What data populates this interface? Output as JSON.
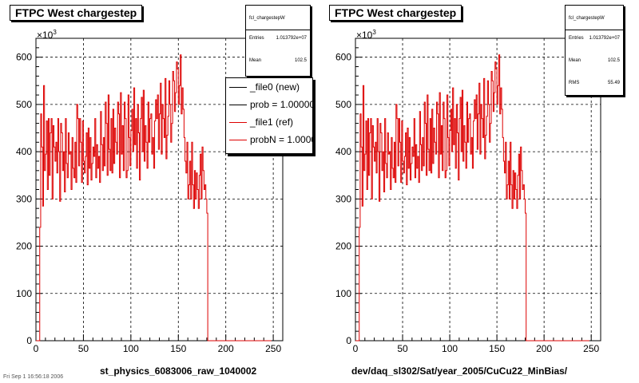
{
  "colors": {
    "new": "#000000",
    "ref": "#dd0000",
    "grid": "#000000"
  },
  "panels": [
    {
      "title": "FTPC West chargestep",
      "x_title": "st_physics_6083006_raw_1040002",
      "exponent": "×10",
      "exponent_power": "3",
      "stats": {
        "name": "fcl_chargestepW",
        "rows": [
          {
            "label": "Entries",
            "value": "1.013792e+07"
          },
          {
            "label": "Mean",
            "value": "102.5"
          }
        ]
      },
      "legend": [
        {
          "label": "_file0 (new)",
          "color": "#000000"
        },
        {
          "label": "prob = 1.000000",
          "color": "#000000"
        },
        {
          "label": "_file1 (ref)",
          "color": "#dd0000"
        },
        {
          "label": "probN = 1.000000",
          "color": "#dd0000"
        }
      ]
    },
    {
      "title": "FTPC West chargestep",
      "x_title": "dev/daq_sl302/Sat/year_2005/CuCu22_MinBias/",
      "exponent": "×10",
      "exponent_power": "3",
      "stats": {
        "name": "fcl_chargestepW",
        "rows": [
          {
            "label": "Entries",
            "value": "1.013792e+07"
          },
          {
            "label": "Mean",
            "value": "102.5"
          },
          {
            "label": "RMS",
            "value": "55.49"
          }
        ]
      }
    }
  ],
  "chart_data": {
    "type": "line",
    "xlim": [
      0,
      260
    ],
    "ylim": [
      0,
      640
    ],
    "x_ticks": [
      0,
      50,
      100,
      150,
      200,
      250
    ],
    "y_ticks": [
      0,
      100,
      200,
      300,
      400,
      500,
      600
    ],
    "grid": true,
    "bin_width": 1,
    "x_start": 0,
    "series_note": "histogram y values in units of 10^3 counts per bin, bins 0..259",
    "values": [
      0,
      0,
      0,
      0,
      240,
      480,
      410,
      285,
      540,
      360,
      395,
      465,
      320,
      470,
      350,
      440,
      470,
      300,
      455,
      410,
      380,
      420,
      355,
      470,
      400,
      295,
      460,
      440,
      360,
      400,
      315,
      470,
      375,
      345,
      440,
      395,
      400,
      320,
      430,
      365,
      345,
      420,
      335,
      500,
      470,
      370,
      470,
      420,
      335,
      465,
      380,
      355,
      390,
      440,
      330,
      450,
      365,
      430,
      340,
      375,
      410,
      390,
      470,
      345,
      415,
      365,
      390,
      335,
      485,
      415,
      360,
      430,
      370,
      505,
      460,
      350,
      520,
      405,
      360,
      470,
      355,
      490,
      375,
      450,
      420,
      395,
      505,
      480,
      345,
      525,
      395,
      455,
      360,
      505,
      470,
      345,
      360,
      520,
      430,
      370,
      445,
      490,
      400,
      535,
      415,
      470,
      365,
      500,
      440,
      340,
      470,
      515,
      400,
      530,
      380,
      455,
      420,
      365,
      505,
      420,
      470,
      480,
      395,
      430,
      365,
      465,
      510,
      470,
      520,
      405,
      480,
      545,
      395,
      500,
      470,
      430,
      555,
      385,
      435,
      475,
      550,
      500,
      420,
      460,
      570,
      550,
      485,
      525,
      590,
      575,
      500,
      540,
      605,
      480,
      535,
      490,
      430,
      380,
      355,
      420,
      300,
      330,
      380,
      300,
      420,
      330,
      280,
      360,
      300,
      355,
      320,
      280,
      350,
      395,
      300,
      410,
      360,
      320,
      330,
      300,
      270,
      0,
      0,
      0,
      0,
      0,
      0,
      0,
      0,
      0,
      0,
      0,
      0,
      0,
      0,
      0,
      0,
      0,
      0,
      0,
      0,
      0,
      0,
      0,
      0,
      0,
      0,
      0,
      0,
      0,
      0,
      0,
      0,
      0,
      0,
      0,
      0,
      0,
      0,
      0,
      0,
      0,
      0,
      0,
      0,
      0,
      0,
      0,
      0,
      0,
      0,
      0,
      0,
      0,
      0,
      0,
      0,
      0,
      0,
      0,
      0,
      0,
      0,
      0,
      0,
      0,
      0,
      0
    ]
  },
  "stamp": "Fri Sep 1 16:56:18 2006"
}
